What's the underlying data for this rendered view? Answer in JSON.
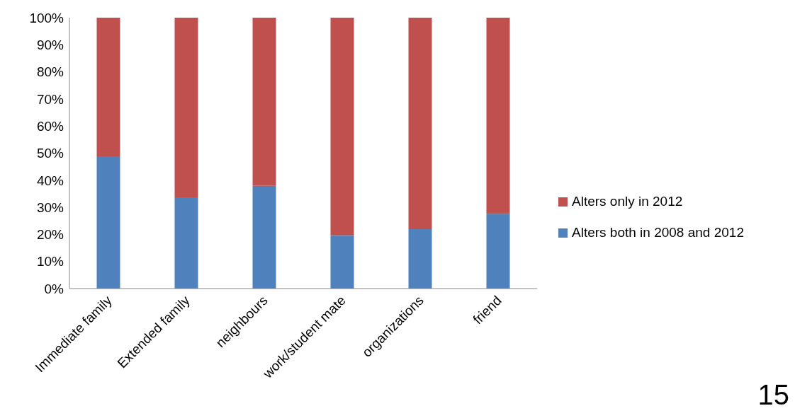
{
  "chart_data": {
    "type": "bar",
    "stacked": true,
    "categories": [
      "Immediate family",
      "Extended family",
      "neighbours",
      "work/student mate",
      "organizations",
      "friend"
    ],
    "series": [
      {
        "name": "Alters both in 2008 and 2012",
        "color": "#4f81bd",
        "values": [
          48.8,
          33.7,
          37.9,
          19.7,
          21.9,
          27.6
        ]
      },
      {
        "name": "Alters only in 2012",
        "color": "#c0504d",
        "values": [
          51.2,
          66.3,
          62.1,
          80.3,
          78.1,
          72.4
        ]
      }
    ],
    "ylim": [
      0,
      100
    ],
    "yticks": [
      {
        "value": 0,
        "label": "0%"
      },
      {
        "value": 10,
        "label": "10%"
      },
      {
        "value": 20,
        "label": "20%"
      },
      {
        "value": 30,
        "label": "30%"
      },
      {
        "value": 40,
        "label": "40%"
      },
      {
        "value": 50,
        "label": "50%"
      },
      {
        "value": 60,
        "label": "60%"
      },
      {
        "value": 70,
        "label": "70%"
      },
      {
        "value": 80,
        "label": "80%"
      },
      {
        "value": 90,
        "label": "90%"
      },
      {
        "value": 100,
        "label": "100%"
      }
    ],
    "grid": false,
    "legend": "right",
    "annotations": [
      "15"
    ]
  }
}
